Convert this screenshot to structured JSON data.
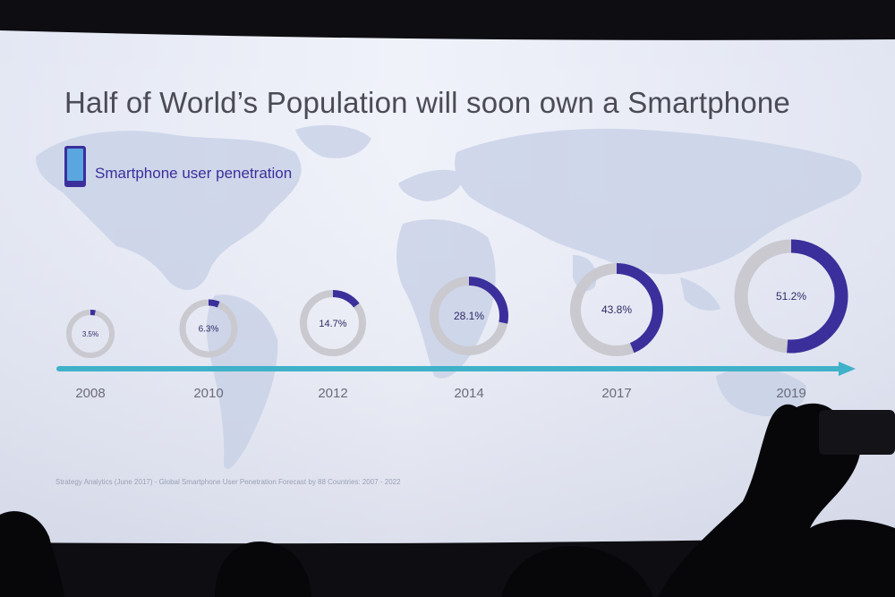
{
  "slide": {
    "title": "Half of World’s Population will soon own a Smartphone",
    "legend_label": "Smartphone user penetration",
    "legend_icon": "smartphone-icon",
    "source": "Strategy Analytics (June 2017) - Global Smartphone User Penetration Forecast by 88 Countries: 2007 - 2022"
  },
  "colors": {
    "accent": "#3b2f9c",
    "ring_track": "#c9c9cf",
    "timeline": "#3fb1c9",
    "year_text": "#6a6c78",
    "slide_bg": "#eceff8"
  },
  "chart_data": {
    "type": "donut-timeline",
    "title": "Half of World’s Population will soon own a Smartphone",
    "series": [
      {
        "name": "Smartphone user penetration",
        "x": [
          "2008",
          "2010",
          "2012",
          "2014",
          "2017",
          "2019"
        ],
        "values": [
          3.5,
          6.3,
          14.7,
          28.1,
          43.8,
          51.2
        ],
        "labels": [
          "3.5%",
          "6.3%",
          "14.7%",
          "28.1%",
          "43.8%",
          "51.2%"
        ]
      }
    ],
    "unit": "%",
    "max": 100
  }
}
